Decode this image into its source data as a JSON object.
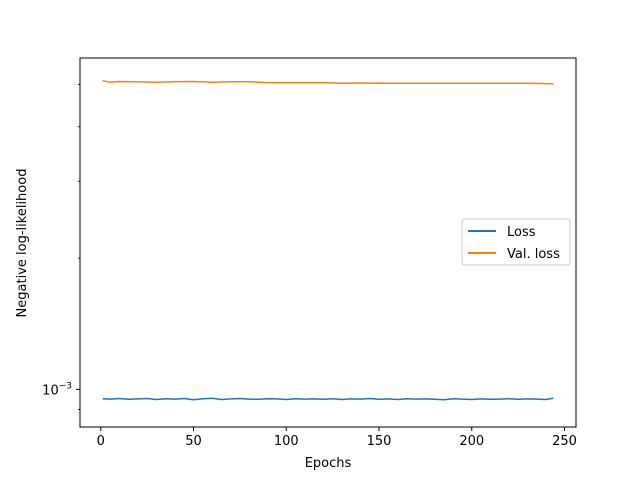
{
  "chart_data": {
    "type": "line",
    "title": "",
    "xlabel": "Epochs",
    "ylabel": "Negative log-likelihood",
    "yscale": "log",
    "xlim": [
      -11.2,
      256.2
    ],
    "ylim": [
      0.00082,
      0.00575
    ],
    "x_ticks": [
      0,
      50,
      100,
      150,
      200,
      250
    ],
    "x_tick_labels": [
      "0",
      "50",
      "100",
      "150",
      "200",
      "250"
    ],
    "y_ticks": [
      0.001
    ],
    "y_tick_labels": [
      "10",
      "−3"
    ],
    "grid": false,
    "legend": {
      "position": "center-right"
    },
    "series": [
      {
        "name": "Loss",
        "color": "#1f77b4",
        "points": [
          [
            1,
            0.000952
          ],
          [
            5,
            0.00095
          ],
          [
            10,
            0.000953
          ],
          [
            15,
            0.000949
          ],
          [
            20,
            0.000951
          ],
          [
            25,
            0.000953
          ],
          [
            30,
            0.000948
          ],
          [
            35,
            0.000952
          ],
          [
            40,
            0.00095
          ],
          [
            45,
            0.000953
          ],
          [
            50,
            0.000947
          ],
          [
            55,
            0.000952
          ],
          [
            60,
            0.000954
          ],
          [
            65,
            0.000948
          ],
          [
            70,
            0.000951
          ],
          [
            75,
            0.000953
          ],
          [
            80,
            0.00095
          ],
          [
            85,
            0.000949
          ],
          [
            90,
            0.000952
          ],
          [
            95,
            0.000951
          ],
          [
            100,
            0.000948
          ],
          [
            105,
            0.000952
          ],
          [
            110,
            0.00095
          ],
          [
            115,
            0.000951
          ],
          [
            120,
            0.000949
          ],
          [
            125,
            0.000952
          ],
          [
            130,
            0.000948
          ],
          [
            135,
            0.000951
          ],
          [
            140,
            0.00095
          ],
          [
            145,
            0.000953
          ],
          [
            150,
            0.000949
          ],
          [
            155,
            0.000951
          ],
          [
            160,
            0.000948
          ],
          [
            165,
            0.000952
          ],
          [
            170,
            0.00095
          ],
          [
            175,
            0.000951
          ],
          [
            180,
            0.000949
          ],
          [
            185,
            0.000947
          ],
          [
            190,
            0.000952
          ],
          [
            195,
            0.00095
          ],
          [
            200,
            0.000948
          ],
          [
            205,
            0.000951
          ],
          [
            210,
            0.000949
          ],
          [
            215,
            0.00095
          ],
          [
            220,
            0.000952
          ],
          [
            225,
            0.000949
          ],
          [
            230,
            0.000951
          ],
          [
            235,
            0.00095
          ],
          [
            240,
            0.000948
          ],
          [
            244,
            0.000955
          ]
        ]
      },
      {
        "name": "Val. loss",
        "color": "#ff7f0e",
        "points": [
          [
            1,
            0.0051
          ],
          [
            5,
            0.00506
          ],
          [
            10,
            0.00508
          ],
          [
            20,
            0.00507
          ],
          [
            30,
            0.00506
          ],
          [
            40,
            0.00507
          ],
          [
            50,
            0.00508
          ],
          [
            60,
            0.00506
          ],
          [
            70,
            0.00507
          ],
          [
            80,
            0.00507
          ],
          [
            90,
            0.00505
          ],
          [
            100,
            0.00505
          ],
          [
            110,
            0.00505
          ],
          [
            120,
            0.00505
          ],
          [
            130,
            0.00503
          ],
          [
            140,
            0.00504
          ],
          [
            150,
            0.00503
          ],
          [
            160,
            0.00503
          ],
          [
            170,
            0.00503
          ],
          [
            180,
            0.00503
          ],
          [
            190,
            0.00503
          ],
          [
            200,
            0.00503
          ],
          [
            210,
            0.00503
          ],
          [
            220,
            0.00503
          ],
          [
            230,
            0.00503
          ],
          [
            244,
            0.00502
          ]
        ]
      }
    ]
  }
}
